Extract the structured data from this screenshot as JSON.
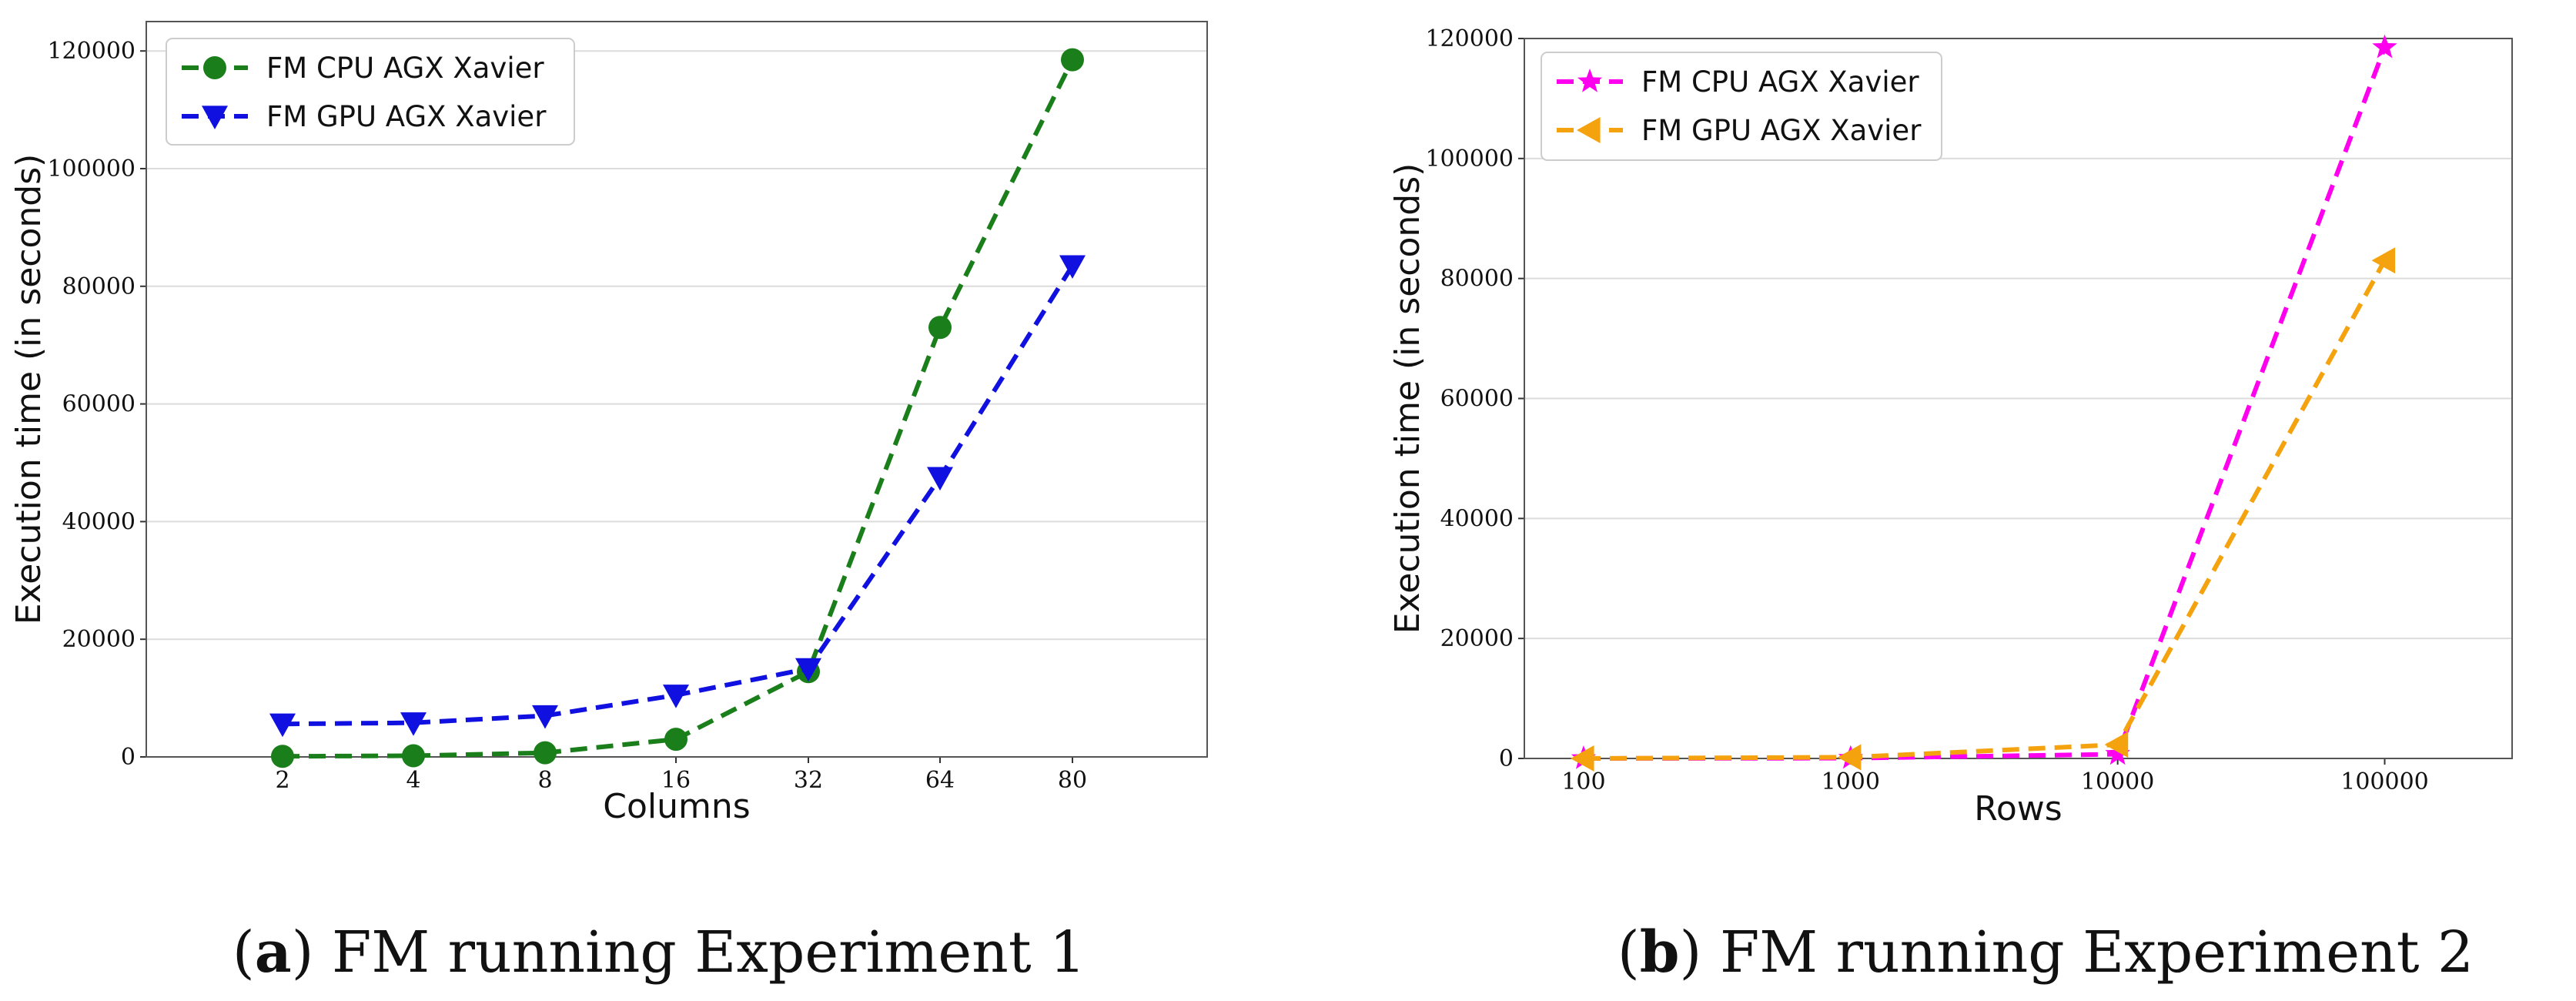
{
  "chart_data": [
    {
      "type": "line",
      "xlabel": "Columns",
      "ylabel": "Execution time (in seconds)",
      "x_scale": "categorical",
      "categories": [
        "2",
        "4",
        "8",
        "16",
        "32",
        "64",
        "80"
      ],
      "ylim": [
        0,
        125000
      ],
      "yticks": [
        0,
        20000,
        40000,
        60000,
        80000,
        100000,
        120000
      ],
      "grid": true,
      "legend_position": "top-left",
      "series": [
        {
          "name": "FM CPU AGX Xavier",
          "color": "#1a7f1a",
          "marker": "circle",
          "values": [
            100,
            200,
            700,
            3000,
            14500,
            73000,
            118500
          ]
        },
        {
          "name": "FM GPU AGX Xavier",
          "color": "#1010e0",
          "marker": "triangle-down",
          "values": [
            5600,
            5800,
            7000,
            10500,
            15000,
            47500,
            83500
          ]
        }
      ],
      "caption_label": "a",
      "caption_text": "FM running Experiment 1"
    },
    {
      "type": "line",
      "xlabel": "Rows",
      "ylabel": "Execution time (in seconds)",
      "x_scale": "log",
      "xlim": [
        60,
        300000
      ],
      "xticks": [
        100,
        1000,
        10000,
        100000
      ],
      "ylim": [
        0,
        120000
      ],
      "yticks": [
        0,
        20000,
        40000,
        60000,
        80000,
        100000,
        120000
      ],
      "grid": true,
      "legend_position": "top-left",
      "series": [
        {
          "name": "FM CPU AGX Xavier",
          "color": "#ff00ee",
          "marker": "star",
          "x": [
            100,
            1000,
            10000,
            100000
          ],
          "values": [
            0,
            50,
            700,
            118500
          ]
        },
        {
          "name": "FM GPU AGX Xavier",
          "color": "#f5a20f",
          "marker": "triangle-left",
          "x": [
            100,
            1000,
            10000,
            100000
          ],
          "values": [
            0,
            200,
            2300,
            83000
          ]
        }
      ],
      "caption_label": "b",
      "caption_text": "FM running Experiment 2"
    }
  ]
}
